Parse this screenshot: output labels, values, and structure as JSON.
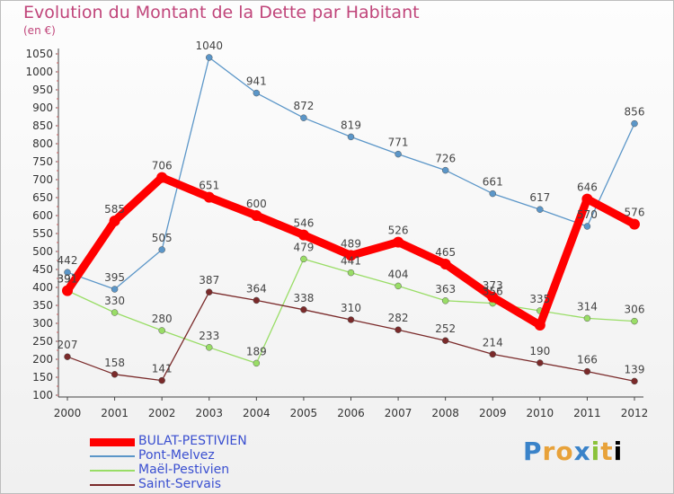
{
  "title": "Evolution du Montant de la Dette par Habitant",
  "subtitle": "(en €)",
  "brand": "Proxiti",
  "chart_data": {
    "type": "line",
    "x": [
      2000,
      2001,
      2002,
      2003,
      2004,
      2005,
      2006,
      2007,
      2008,
      2009,
      2010,
      2011,
      2012
    ],
    "yticks": [
      100,
      150,
      200,
      250,
      300,
      350,
      400,
      450,
      500,
      550,
      600,
      650,
      700,
      750,
      800,
      850,
      900,
      950,
      1000,
      1050
    ],
    "ylim": [
      100,
      1050
    ],
    "grid": false,
    "legend_position": "bottom-left",
    "series": [
      {
        "name": "BULAT-PESTIVIEN",
        "color": "#ff0000",
        "emphasis": true,
        "values": [
          391,
          585,
          706,
          651,
          600,
          546,
          489,
          526,
          465,
          373,
          295,
          646,
          576
        ],
        "labels": [
          "391",
          "585",
          "706",
          "651",
          "600",
          "546",
          "489",
          "526",
          "465",
          "373",
          "",
          "646",
          "576"
        ]
      },
      {
        "name": "Pont-Melvez",
        "color": "#5b96c8",
        "emphasis": false,
        "values": [
          442,
          395,
          505,
          1040,
          941,
          872,
          819,
          771,
          726,
          661,
          617,
          570,
          856
        ],
        "labels": [
          "442",
          "395",
          "505",
          "1040",
          "941",
          "872",
          "819",
          "771",
          "726",
          "661",
          "617",
          "570",
          "856"
        ]
      },
      {
        "name": "Maël-Pestivien",
        "color": "#99dd66",
        "emphasis": false,
        "values": [
          391,
          330,
          280,
          233,
          189,
          479,
          441,
          404,
          363,
          356,
          335,
          314,
          306
        ],
        "labels": [
          "391",
          "330",
          "280",
          "233",
          "189",
          "479",
          "441",
          "404",
          "363",
          "356",
          "335",
          "314",
          "306"
        ]
      },
      {
        "name": "Saint-Servais",
        "color": "#7a2a2a",
        "emphasis": false,
        "values": [
          207,
          158,
          141,
          387,
          364,
          338,
          310,
          282,
          252,
          214,
          190,
          166,
          139
        ],
        "labels": [
          "207",
          "158",
          "141",
          "387",
          "364",
          "338",
          "310",
          "282",
          "252",
          "214",
          "190",
          "166",
          "139"
        ]
      }
    ]
  }
}
